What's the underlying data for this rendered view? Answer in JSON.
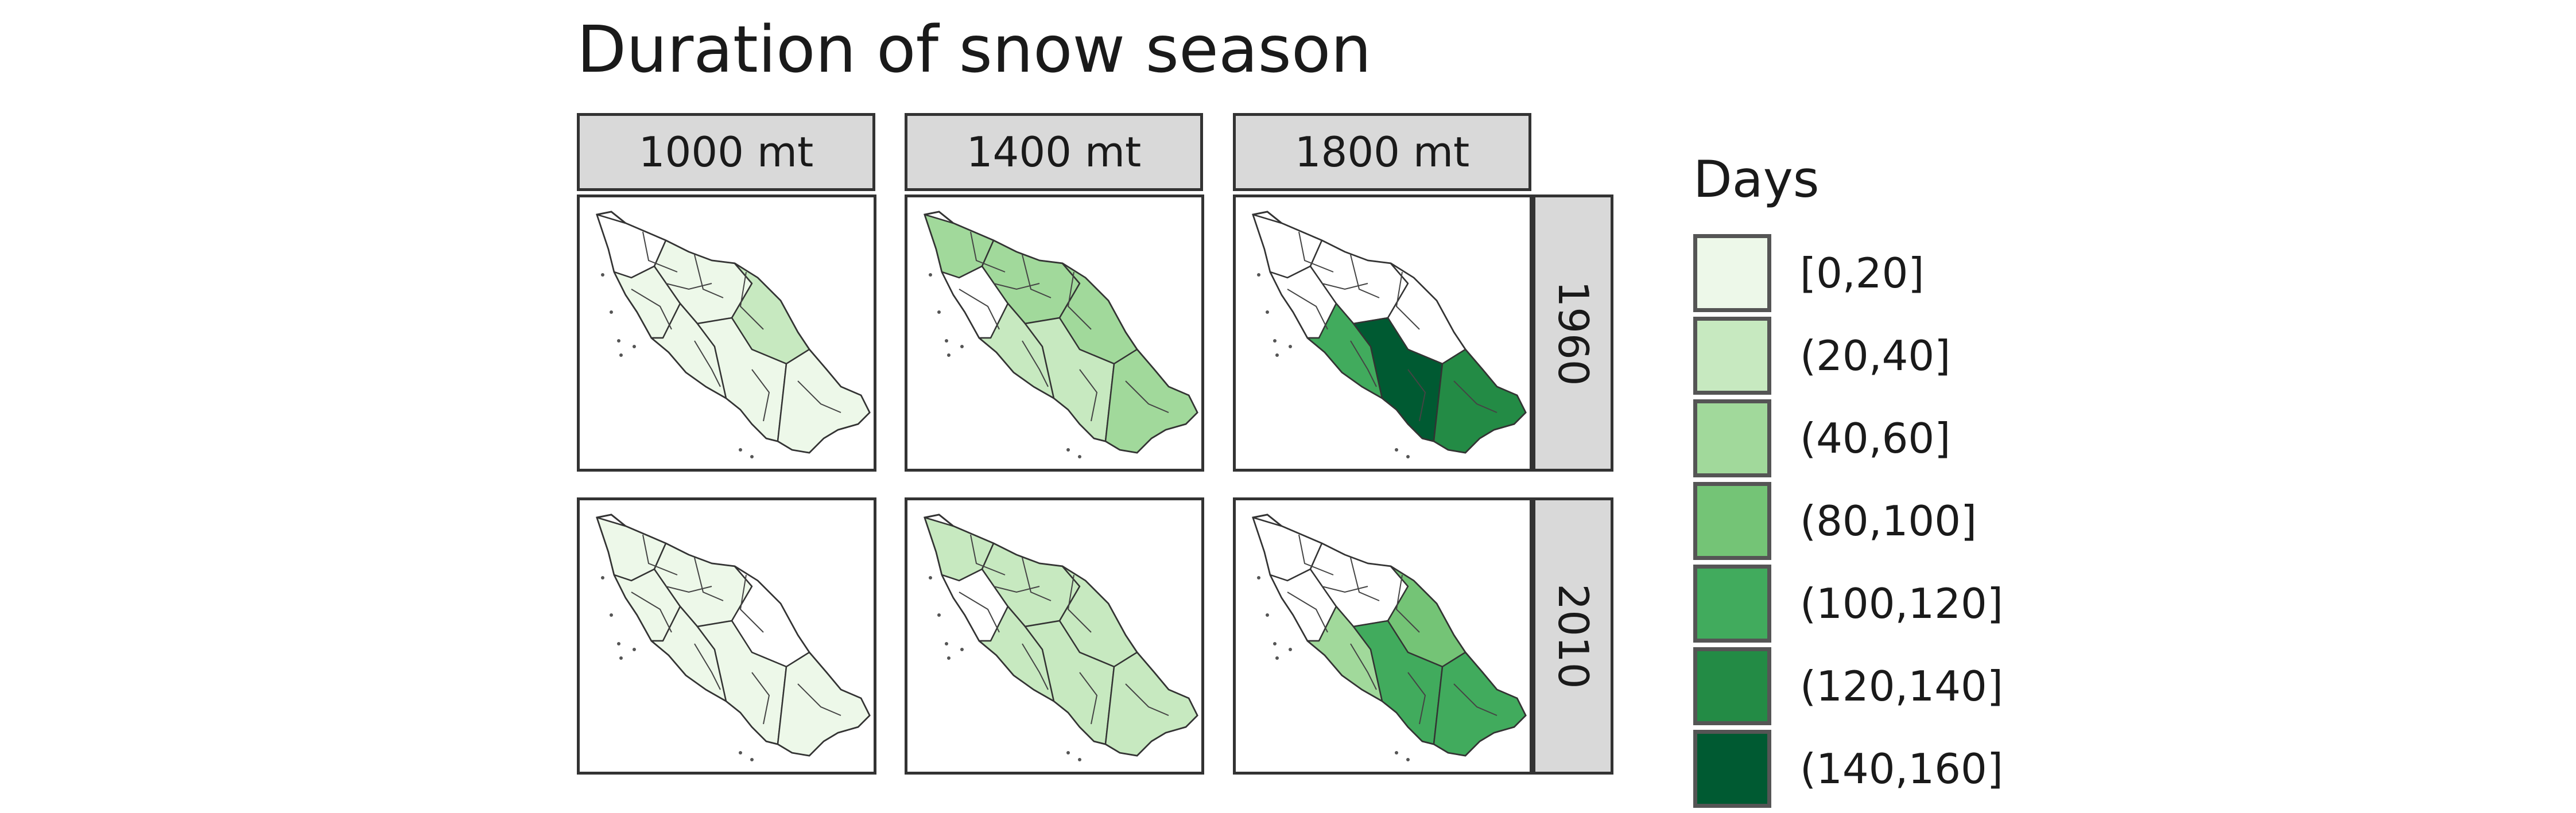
{
  "chart_data": {
    "type": "heatmap",
    "title": "Duration of snow season",
    "facet_columns": [
      "1000 mt",
      "1400 mt",
      "1800 mt"
    ],
    "facet_rows": [
      "1960",
      "2010"
    ],
    "legend": {
      "title": "Days",
      "placement": "right",
      "classes": [
        {
          "label": "[0,20]",
          "color": "#edf8e9"
        },
        {
          "label": "(20,40]",
          "color": "#c7e9c0"
        },
        {
          "label": "(40,60]",
          "color": "#a1d99b"
        },
        {
          "label": "(80,100]",
          "color": "#74c476"
        },
        {
          "label": "(100,120]",
          "color": "#41ab5d"
        },
        {
          "label": "(120,140]",
          "color": "#238b45"
        },
        {
          "label": "(140,160]",
          "color": "#005a32"
        }
      ]
    },
    "panels": [
      {
        "altitude": "1000 mt",
        "period": "1960",
        "cells": {
          "nw": "",
          "w": "[0,20]",
          "c": "[0,20]",
          "e": "(20,40]",
          "sw": "[0,20]",
          "s": "[0,20]",
          "se": "[0,20]"
        }
      },
      {
        "altitude": "1400 mt",
        "period": "1960",
        "cells": {
          "nw": "(40,60]",
          "w": "",
          "c": "(40,60]",
          "e": "(40,60]",
          "sw": "(20,40]",
          "s": "(20,40]",
          "se": "(40,60]"
        }
      },
      {
        "altitude": "1800 mt",
        "period": "1960",
        "cells": {
          "nw": "",
          "w": "",
          "c": "",
          "e": "",
          "sw": "(100,120]",
          "s": "(140,160]",
          "se": "(120,140]"
        }
      },
      {
        "altitude": "1000 mt",
        "period": "2010",
        "cells": {
          "nw": "[0,20]",
          "w": "[0,20]",
          "c": "[0,20]",
          "e": "",
          "sw": "[0,20]",
          "s": "[0,20]",
          "se": "[0,20]"
        }
      },
      {
        "altitude": "1400 mt",
        "period": "2010",
        "cells": {
          "nw": "(20,40]",
          "w": "",
          "c": "(20,40]",
          "e": "(20,40]",
          "sw": "(20,40]",
          "s": "(20,40]",
          "se": "(20,40]"
        }
      },
      {
        "altitude": "1800 mt",
        "period": "2010",
        "cells": {
          "nw": "",
          "w": "",
          "c": "",
          "e": "(80,100]",
          "sw": "(40,60]",
          "s": "(100,120]",
          "se": "(100,120]"
        }
      }
    ]
  }
}
